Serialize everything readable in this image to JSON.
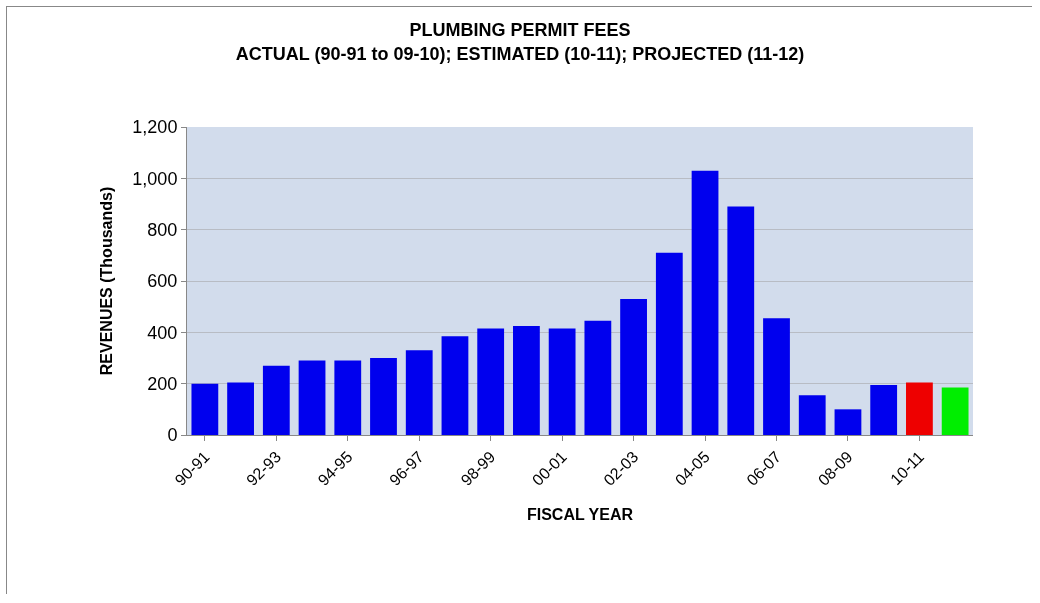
{
  "chart_data": {
    "type": "bar",
    "title": "PLUMBING PERMIT FEES\nACTUAL (90-91 to 09-10); ESTIMATED (10-11); PROJECTED (11-12)",
    "xlabel": "FISCAL YEAR",
    "ylabel": "REVENUES (Thousands)",
    "categories": [
      "90-91",
      null,
      "92-93",
      null,
      "94-95",
      null,
      "96-97",
      null,
      "98-99",
      null,
      "00-01",
      null,
      "02-03",
      null,
      "04-05",
      null,
      "06-07",
      null,
      "08-09",
      null,
      "10-11",
      null
    ],
    "values": [
      200,
      205,
      270,
      290,
      290,
      300,
      330,
      385,
      415,
      425,
      415,
      445,
      530,
      710,
      1030,
      890,
      455,
      155,
      100,
      195,
      205,
      185
    ],
    "colors": [
      "#0000ee",
      "#0000ee",
      "#0000ee",
      "#0000ee",
      "#0000ee",
      "#0000ee",
      "#0000ee",
      "#0000ee",
      "#0000ee",
      "#0000ee",
      "#0000ee",
      "#0000ee",
      "#0000ee",
      "#0000ee",
      "#0000ee",
      "#0000ee",
      "#0000ee",
      "#0000ee",
      "#0000ee",
      "#0000ee",
      "#ee0000",
      "#00ee00"
    ],
    "ylim": [
      0,
      1200
    ],
    "yticks": [
      0,
      {
        "value": 200,
        "label": "200"
      },
      {
        "value": 400,
        "label": "400"
      },
      {
        "value": 600,
        "label": "600"
      },
      {
        "value": 800,
        "label": "800"
      },
      {
        "value": 1000,
        "label": "1,000"
      },
      {
        "value": 1200,
        "label": "1,200"
      }
    ],
    "grid": "y",
    "legend": false
  }
}
